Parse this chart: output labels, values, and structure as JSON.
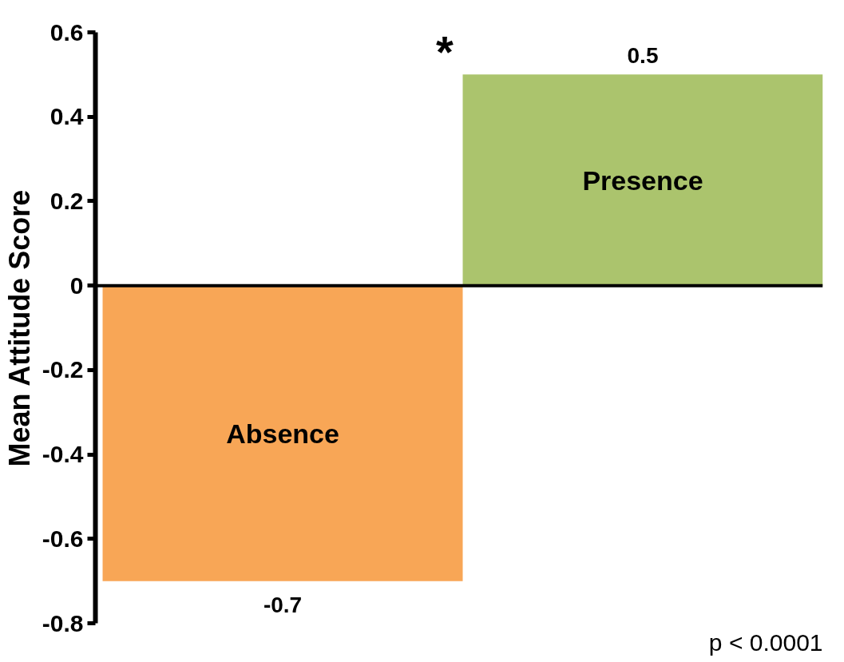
{
  "chart_data": {
    "type": "bar",
    "ylabel": "Mean Attitude Score",
    "categories": [
      "Absence",
      "Presence"
    ],
    "values": [
      -0.7,
      0.5
    ],
    "colors": [
      "#f8a656",
      "#abc46d"
    ],
    "data_labels": true,
    "ylim": [
      -0.8,
      0.6
    ],
    "yticks": [
      -0.8,
      -0.6,
      -0.4,
      -0.2,
      0,
      0.2,
      0.4,
      0.6
    ],
    "tick_labels": "y",
    "annotations": [
      "*",
      "p < 0.0001"
    ]
  }
}
